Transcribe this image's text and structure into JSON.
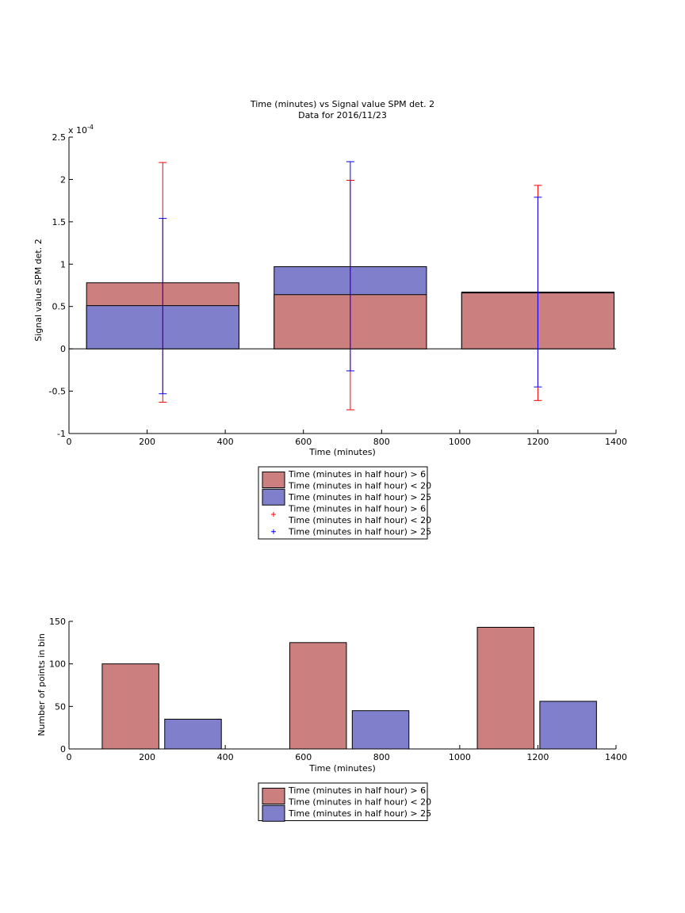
{
  "chart_data": [
    {
      "type": "bar",
      "title": "Time (minutes) vs Signal value SPM det. 2",
      "subtitle": "Data for 2016/11/23",
      "xlabel": "Time (minutes)",
      "ylabel": "Signal value SPM det. 2",
      "y_exponent_label": "x 10",
      "y_exponent_power": "-4",
      "xlim": [
        0,
        1400
      ],
      "ylim": [
        -1,
        2.5
      ],
      "xticks": [
        0,
        200,
        400,
        600,
        800,
        1000,
        1200,
        1400
      ],
      "yticks": [
        -1,
        -0.5,
        0,
        0.5,
        1,
        1.5,
        2,
        2.5
      ],
      "grid": false,
      "legend_position": "below",
      "bars": [
        {
          "x_start": 45,
          "x_end": 435,
          "red_value": 0.78,
          "blue_value": 0.51
        },
        {
          "x_start": 525,
          "x_end": 915,
          "red_value": 0.64,
          "blue_value": 0.97
        },
        {
          "x_start": 1005,
          "x_end": 1395,
          "red_value": 0.66,
          "blue_value": 0.67
        }
      ],
      "error_bars": [
        {
          "x": 240,
          "color": "red",
          "low": -0.63,
          "high": 2.2
        },
        {
          "x": 240,
          "color": "blue",
          "low": -0.53,
          "high": 1.54
        },
        {
          "x": 720,
          "color": "red",
          "low": -0.72,
          "high": 1.99
        },
        {
          "x": 720,
          "color": "blue",
          "low": -0.26,
          "high": 2.21
        },
        {
          "x": 1200,
          "color": "red",
          "low": -0.61,
          "high": 1.93
        },
        {
          "x": 1200,
          "color": "blue",
          "low": -0.45,
          "high": 1.79
        }
      ],
      "legend": [
        {
          "kind": "patch",
          "color": "#cc7f7f",
          "lines": [
            "Time (minutes in half hour) > 6",
            "Time (minutes in half hour) < 20"
          ]
        },
        {
          "kind": "patch",
          "color": "#7f7fcc",
          "lines": [
            "Time (minutes in half hour) > 25"
          ]
        },
        {
          "kind": "marker",
          "color": "#ff0000",
          "lines": [
            "Time (minutes in half hour) > 6",
            "Time (minutes in half hour) < 20"
          ]
        },
        {
          "kind": "marker",
          "color": "#0000ff",
          "lines": [
            "Time (minutes in half hour) > 25"
          ]
        }
      ]
    },
    {
      "type": "bar",
      "title": "",
      "xlabel": "Time (minutes)",
      "ylabel": "Number of points in bin",
      "xlim": [
        0,
        1400
      ],
      "ylim": [
        0,
        150
      ],
      "xticks": [
        0,
        200,
        400,
        600,
        800,
        1000,
        1200,
        1400
      ],
      "yticks": [
        0,
        50,
        100,
        150
      ],
      "grid": false,
      "legend_position": "below",
      "bars": [
        {
          "x_start": 85,
          "x_end": 230,
          "value": 100,
          "series": "red"
        },
        {
          "x_start": 245,
          "x_end": 390,
          "value": 35,
          "series": "blue"
        },
        {
          "x_start": 565,
          "x_end": 710,
          "value": 125,
          "series": "red"
        },
        {
          "x_start": 725,
          "x_end": 870,
          "value": 45,
          "series": "blue"
        },
        {
          "x_start": 1045,
          "x_end": 1190,
          "value": 143,
          "series": "red"
        },
        {
          "x_start": 1205,
          "x_end": 1350,
          "value": 56,
          "series": "blue"
        }
      ],
      "legend": [
        {
          "kind": "patch",
          "color": "#cc7f7f",
          "lines": [
            "Time (minutes in half hour) > 6",
            "Time (minutes in half hour) < 20"
          ]
        },
        {
          "kind": "patch",
          "color": "#7f7fcc",
          "lines": [
            "Time (minutes in half hour) > 25"
          ]
        }
      ]
    }
  ],
  "colors": {
    "red_bar": "#cc7f7f",
    "blue_bar": "#7f7fcc",
    "red_err": "#ff0000",
    "blue_err": "#0000ff"
  }
}
